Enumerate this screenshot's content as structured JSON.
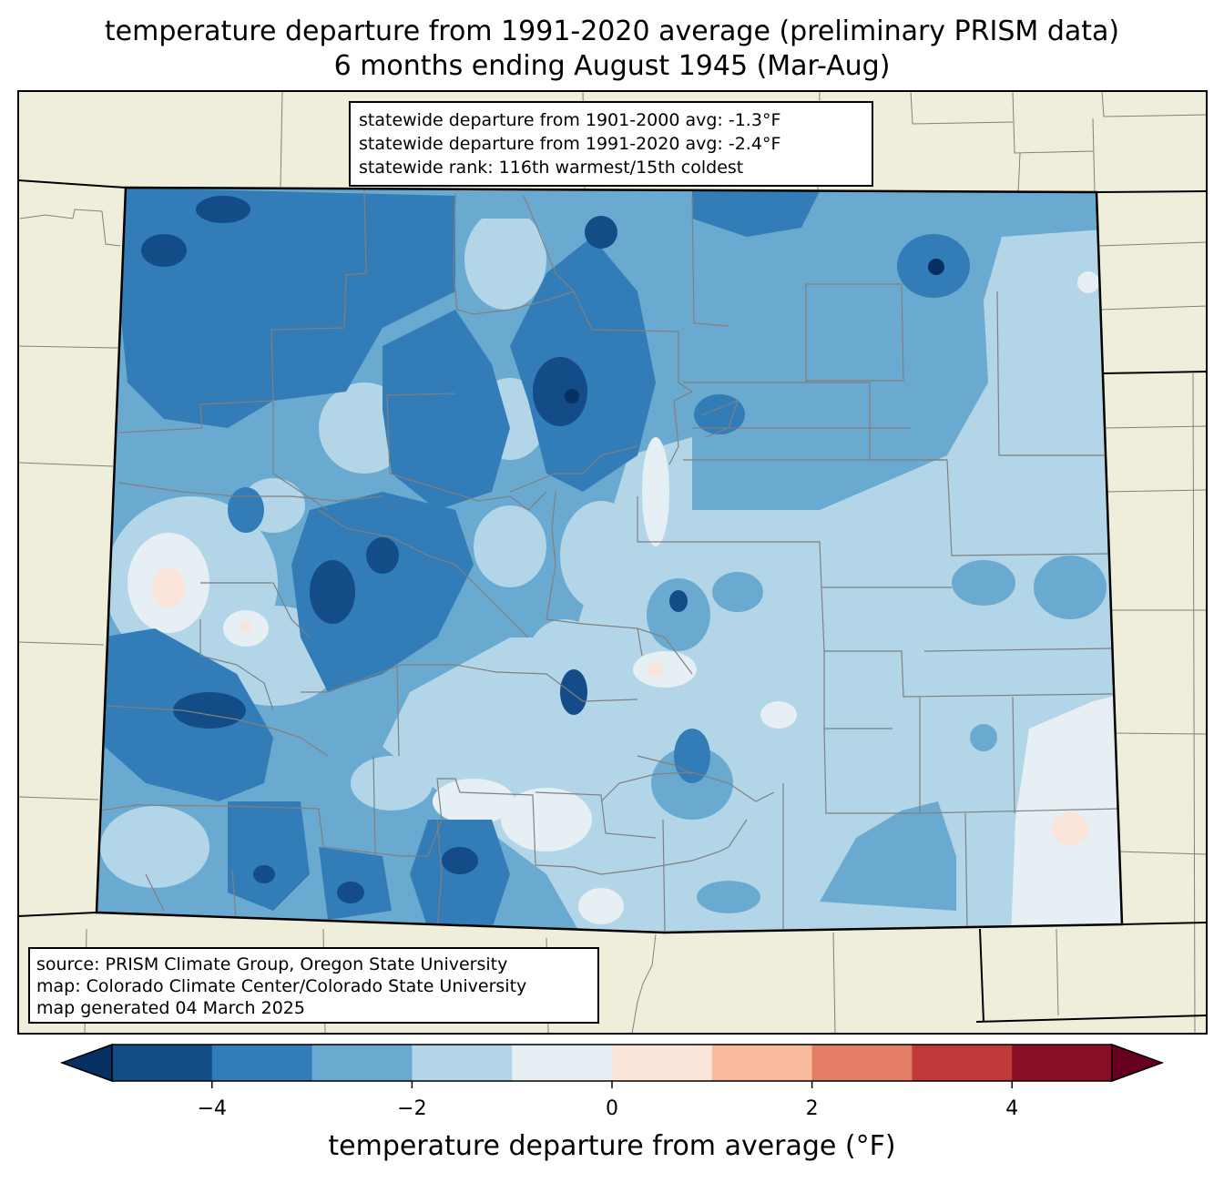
{
  "title": {
    "line1": "temperature departure from 1991-2020 average (preliminary PRISM data)",
    "line2": "6 months ending August 1945 (Mar-Aug)"
  },
  "stats": {
    "line1": "statewide departure from 1901-2000 avg: -1.3°F",
    "line2": "statewide departure from 1991-2020 avg: -2.4°F",
    "line3": "statewide rank: 116th warmest/15th coldest"
  },
  "source": {
    "line1": "source: PRISM Climate Group, Oregon State University",
    "line2": "map: Colorado Climate Center/Colorado State University",
    "line3": "map generated 04 March 2025"
  },
  "colorbar": {
    "label": "temperature departure from average (°F)",
    "ticks": [
      {
        "value": -4,
        "label": "−4"
      },
      {
        "value": -2,
        "label": "−2"
      },
      {
        "value": 0,
        "label": "0"
      },
      {
        "value": 2,
        "label": "2"
      },
      {
        "value": 4,
        "label": "4"
      }
    ],
    "range": [
      -5,
      5
    ],
    "bins": [
      {
        "from": -5,
        "to": -4,
        "color": "#134c87"
      },
      {
        "from": -4,
        "to": -3,
        "color": "#327cb7"
      },
      {
        "from": -3,
        "to": -2,
        "color": "#6aaad1"
      },
      {
        "from": -2,
        "to": -1,
        "color": "#b2d5e7"
      },
      {
        "from": -1,
        "to": 0,
        "color": "#e6eff4"
      },
      {
        "from": 0,
        "to": 1,
        "color": "#fbe5d8"
      },
      {
        "from": 1,
        "to": 2,
        "color": "#f8bb9d"
      },
      {
        "from": 2,
        "to": 3,
        "color": "#e37e64"
      },
      {
        "from": 3,
        "to": 4,
        "color": "#c03a39"
      },
      {
        "from": 4,
        "to": 5,
        "color": "#870e26"
      }
    ],
    "extend_low_color": "#053061",
    "extend_high_color": "#67001f"
  },
  "colors": {
    "land": "#efeedb",
    "state_border": "#000000",
    "county_border": "#808080"
  }
}
